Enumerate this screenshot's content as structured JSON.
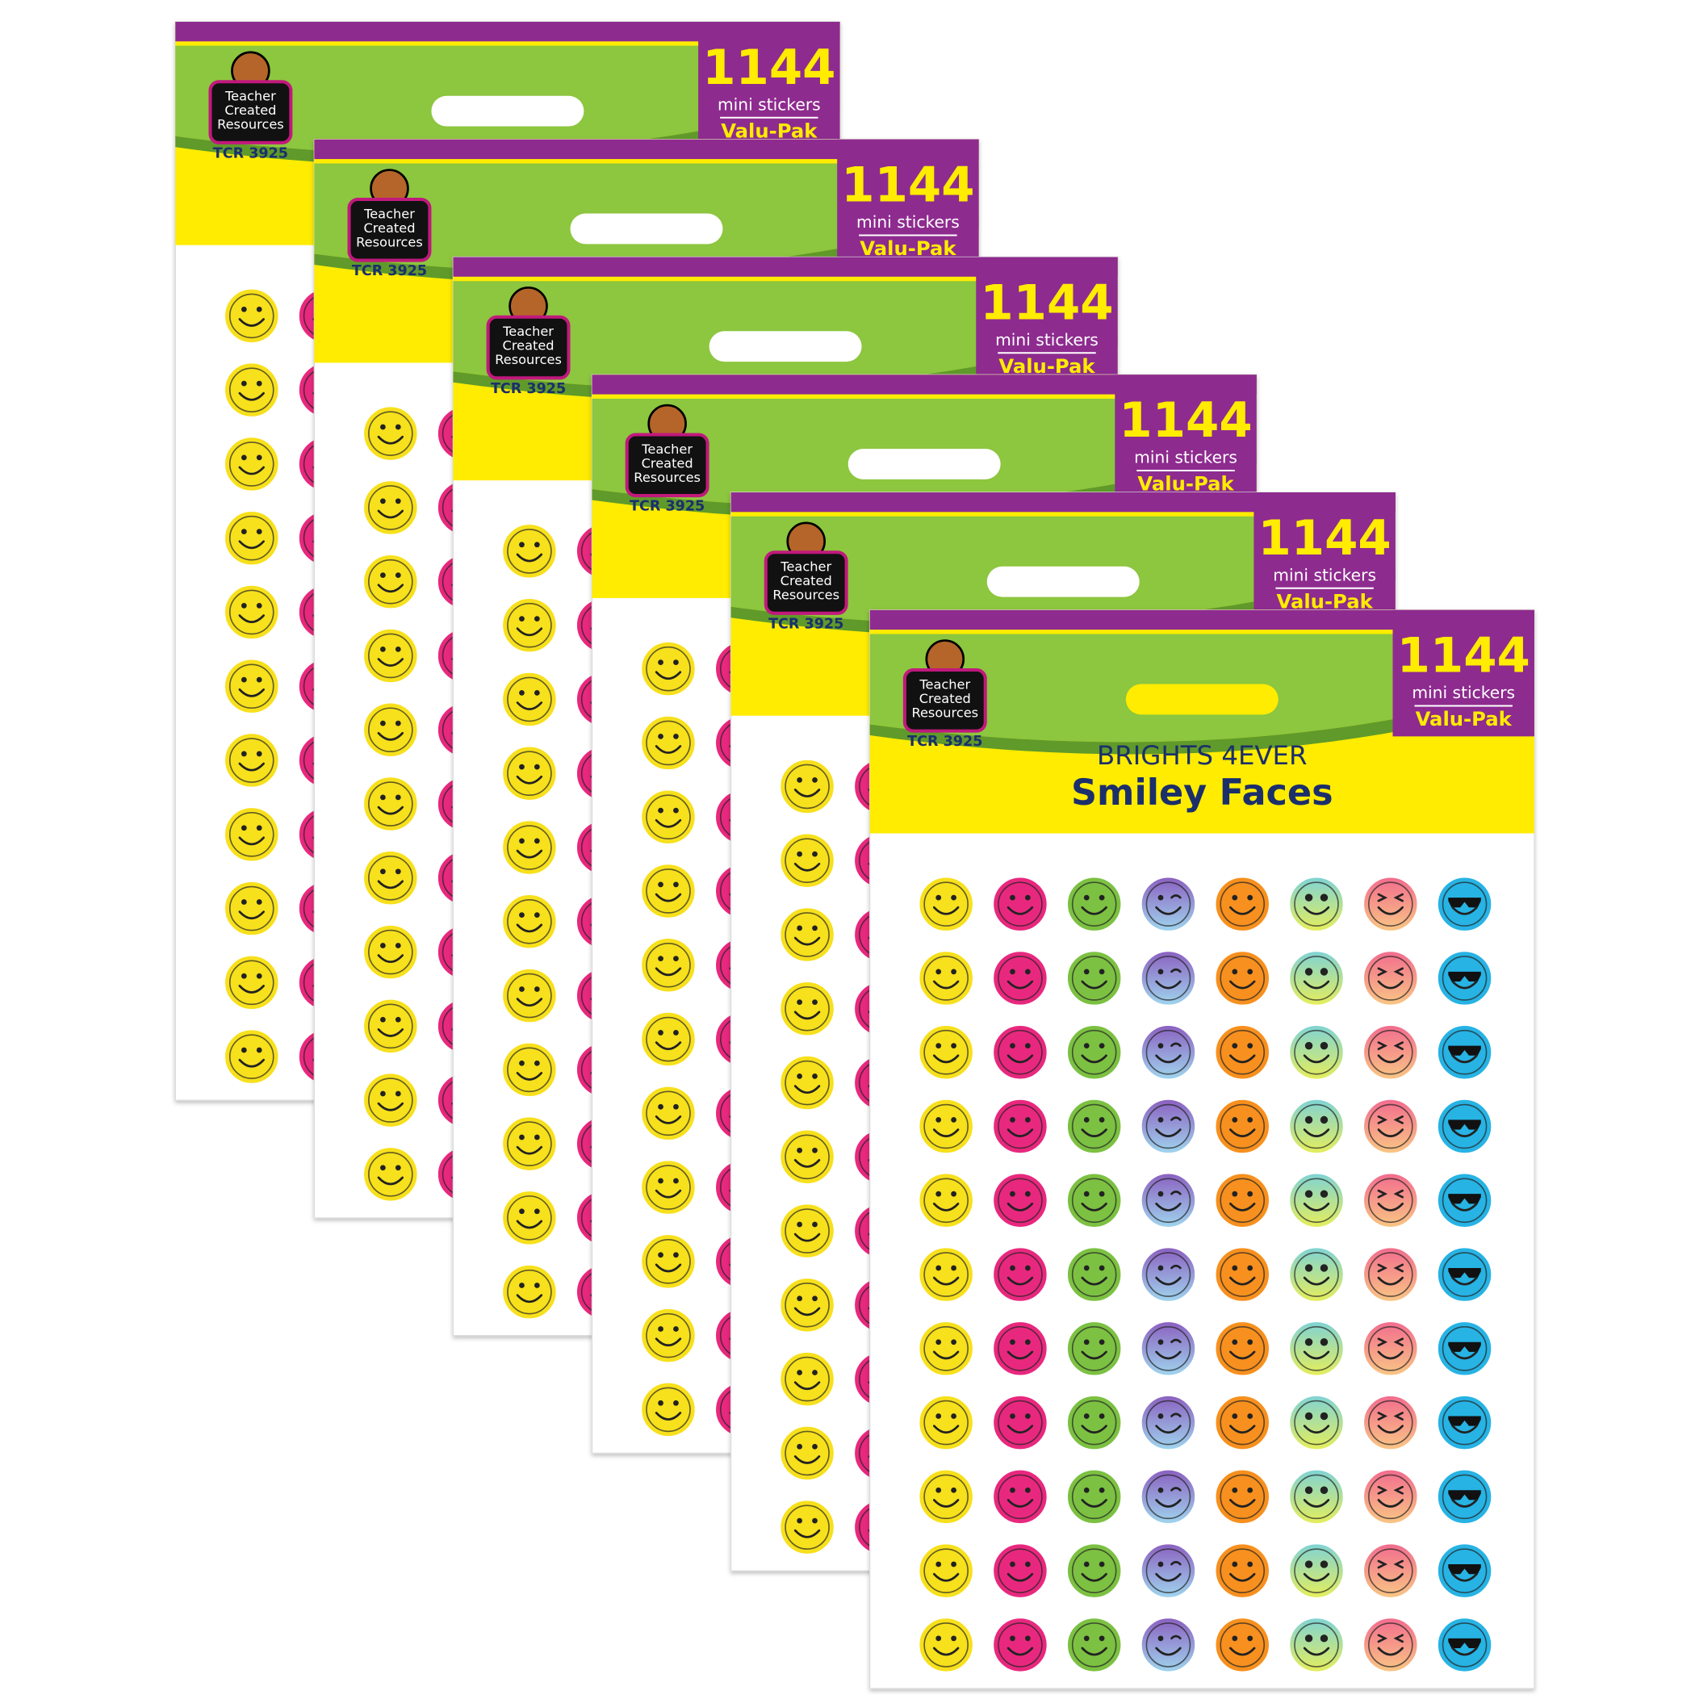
{
  "package": {
    "brand_lines": [
      "Teacher",
      "Created",
      "Resources"
    ],
    "sku": "TCR 3925",
    "count": "1144",
    "count_label": "mini stickers",
    "pack_type": "Valu-Pak",
    "series": "BRIGHTS 4EVER",
    "title": "Smiley Faces"
  }
}
